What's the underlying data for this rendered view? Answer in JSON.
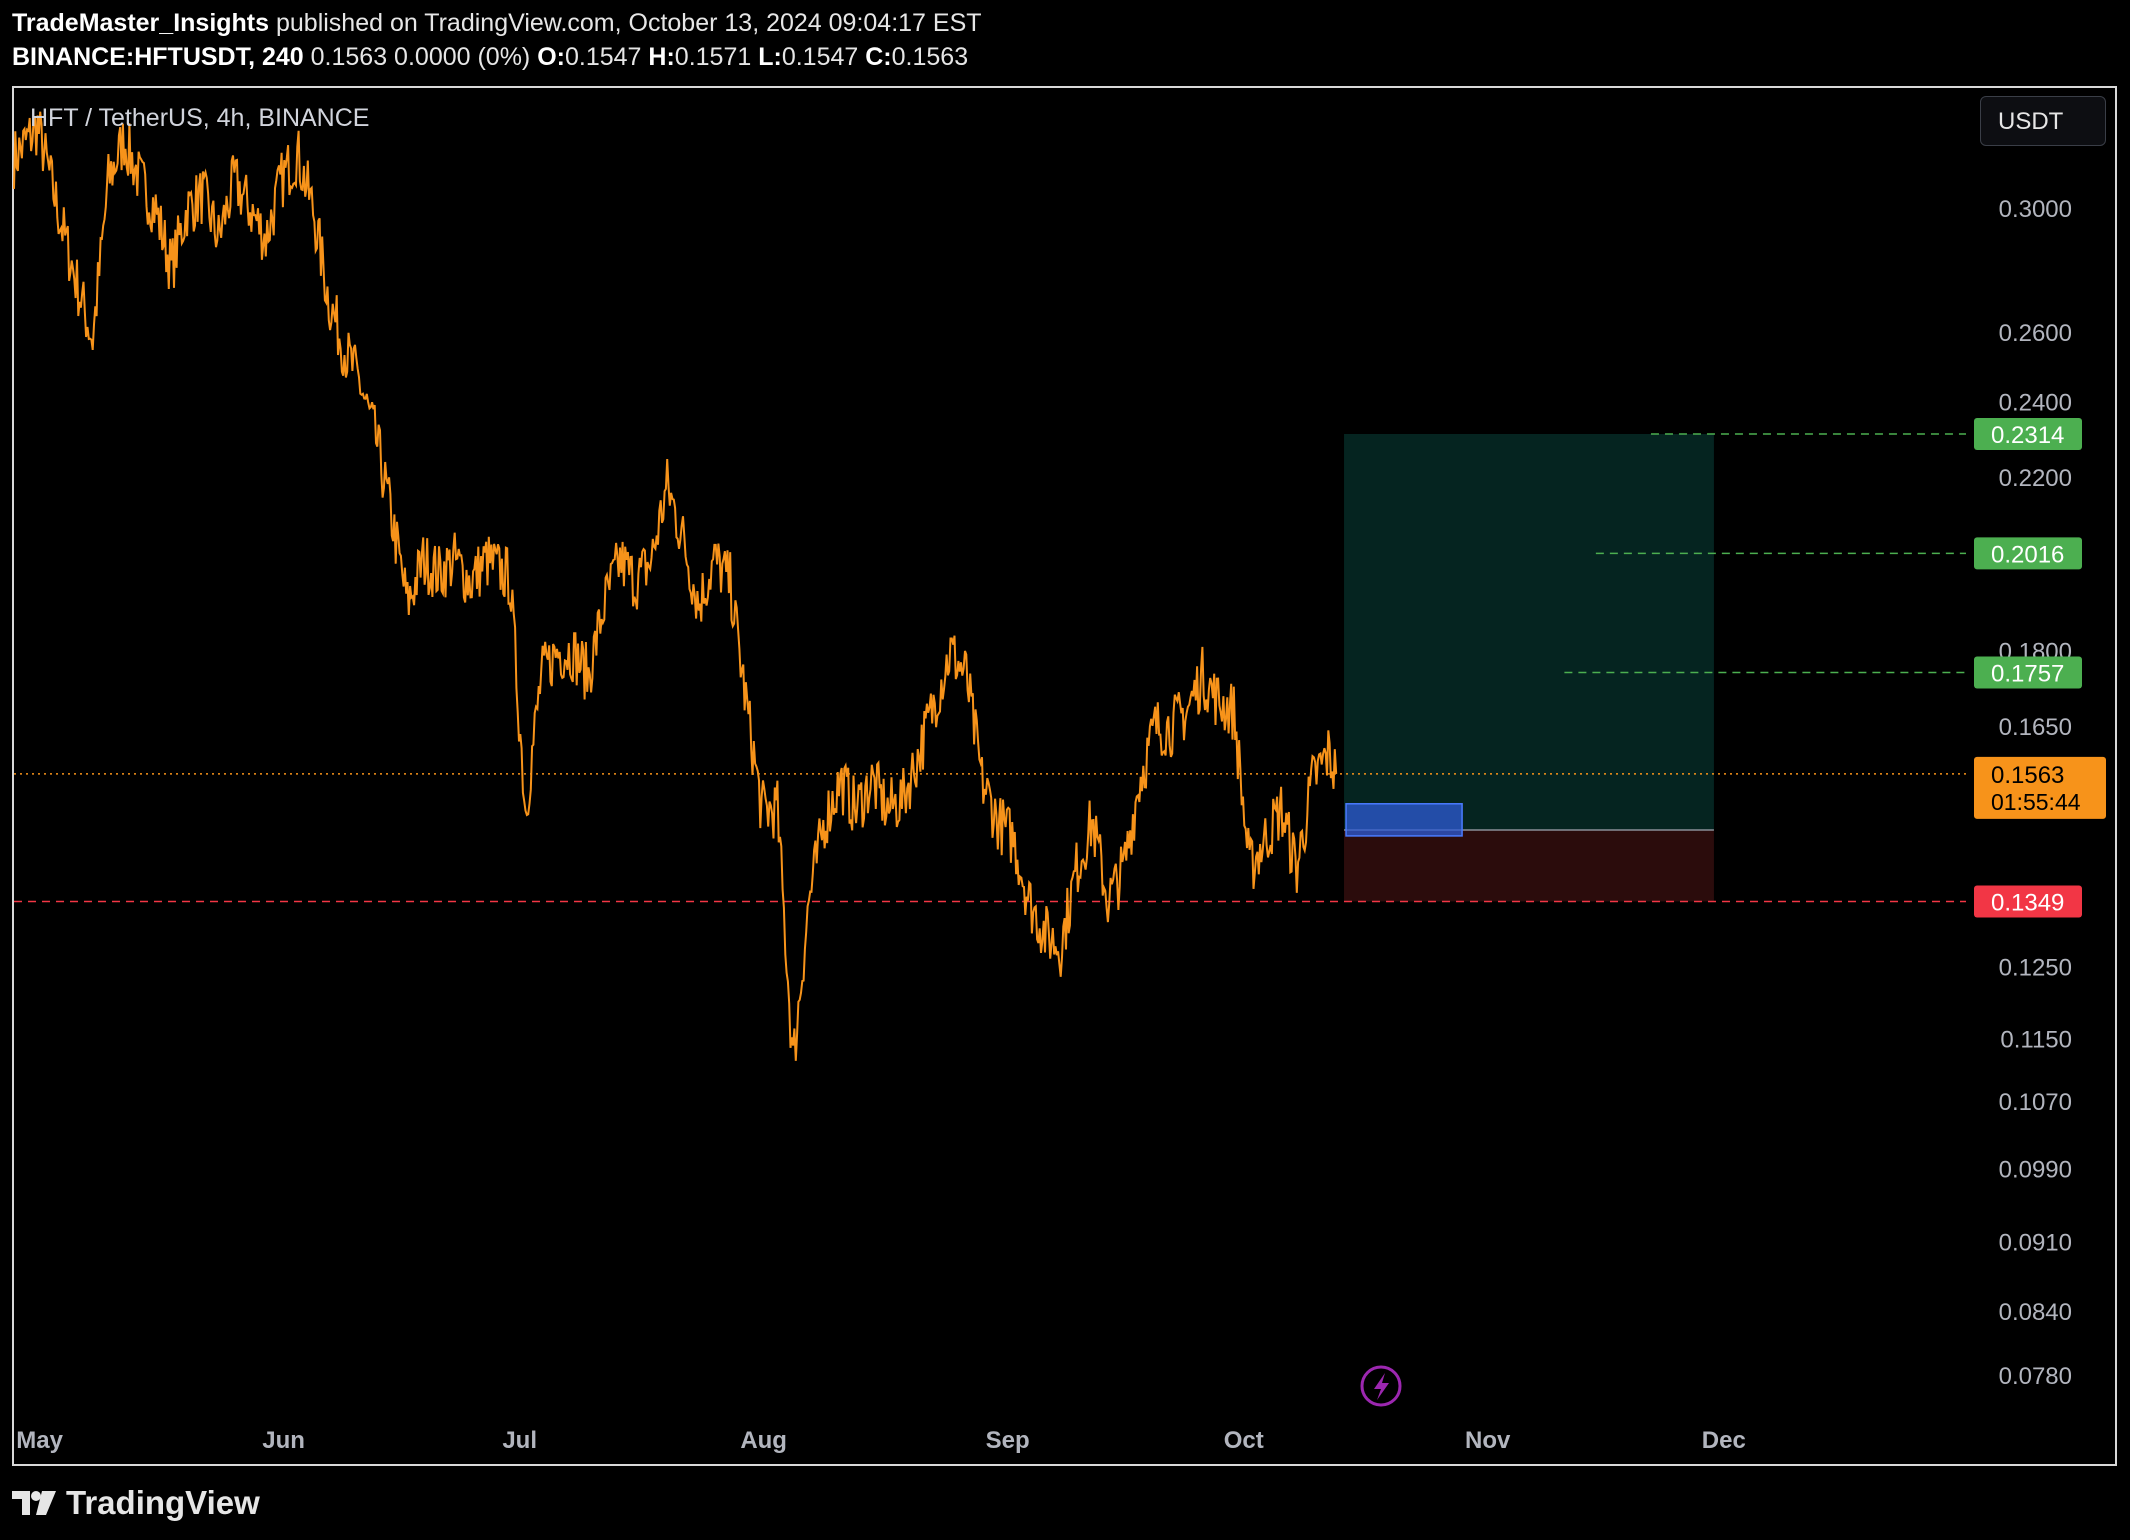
{
  "header": {
    "author": "TradeMaster_Insights",
    "published": " published on TradingView.com, October 13, 2024 09:04:17 EST",
    "symbol": "BINANCE:HFTUSDT, 240",
    "last": " 0.1563 0.0000 (0%) ",
    "o_label": "O:",
    "o_value": "0.1547",
    "h_label": "H:",
    "h_value": "0.1571",
    "l_label": "L:",
    "l_value": "0.1547",
    "c_label": "C:",
    "c_value": "0.1563"
  },
  "symbol_title": "HFT / TetherUS, 4h, BINANCE",
  "currency_button": "USDT",
  "footer": {
    "brand": "TradingView"
  },
  "colors": {
    "price_line": "#f7931a",
    "take_profit_zone": "#052420",
    "stop_zone": "#2b0c0c",
    "entry_box": "#2d5bd6",
    "target_label": "#4caf50",
    "stop_label": "#f23645",
    "last_price_label": "#f7931a",
    "axis_text": "#b2b5be"
  },
  "chart_data": {
    "type": "line",
    "scale": "log",
    "ylim": [
      0.075,
      0.345
    ],
    "x_axis_labels": [
      "May",
      "Jun",
      "Jul",
      "Aug",
      "Sep",
      "Oct",
      "Nov",
      "Dec"
    ],
    "y_axis_labels": [
      "0.3000",
      "0.2600",
      "0.2400",
      "0.2200",
      "0.1800",
      "0.1650",
      "0.1250",
      "0.1150",
      "0.1070",
      "0.0990",
      "0.0910",
      "0.0840",
      "0.0780"
    ],
    "series": [
      {
        "x": [
          "2024-04-28",
          "2024-05-01",
          "2024-05-04",
          "2024-05-06",
          "2024-05-08",
          "2024-05-10",
          "2024-05-12",
          "2024-05-14",
          "2024-05-16",
          "2024-05-18",
          "2024-05-20",
          "2024-05-22",
          "2024-05-24",
          "2024-05-26",
          "2024-05-28",
          "2024-05-30",
          "2024-06-01",
          "2024-06-03",
          "2024-06-05",
          "2024-06-07",
          "2024-06-09",
          "2024-06-11",
          "2024-06-13",
          "2024-06-15",
          "2024-06-17",
          "2024-06-19",
          "2024-06-21",
          "2024-06-23",
          "2024-06-25",
          "2024-06-27",
          "2024-06-30",
          "2024-07-02",
          "2024-07-04",
          "2024-07-06",
          "2024-07-08",
          "2024-07-10",
          "2024-07-12",
          "2024-07-14",
          "2024-07-16",
          "2024-07-18",
          "2024-07-20",
          "2024-07-22",
          "2024-07-24",
          "2024-07-26",
          "2024-07-28",
          "2024-07-30",
          "2024-08-01",
          "2024-08-03",
          "2024-08-05",
          "2024-08-07",
          "2024-08-09",
          "2024-08-11",
          "2024-08-13",
          "2024-08-15",
          "2024-08-17",
          "2024-08-19",
          "2024-08-21",
          "2024-08-23",
          "2024-08-25",
          "2024-08-27",
          "2024-08-29",
          "2024-08-31",
          "2024-09-02",
          "2024-09-04",
          "2024-09-06",
          "2024-09-08",
          "2024-09-10",
          "2024-09-12",
          "2024-09-14",
          "2024-09-16",
          "2024-09-18",
          "2024-09-20",
          "2024-09-22",
          "2024-09-24",
          "2024-09-26",
          "2024-09-28",
          "2024-09-30",
          "2024-10-02",
          "2024-10-04",
          "2024-10-06",
          "2024-10-08",
          "2024-10-10",
          "2024-10-12",
          "2024-10-13"
        ],
        "values": [
          0.318,
          0.33,
          0.295,
          0.275,
          0.258,
          0.31,
          0.325,
          0.31,
          0.3,
          0.28,
          0.3,
          0.305,
          0.29,
          0.31,
          0.3,
          0.29,
          0.31,
          0.32,
          0.3,
          0.27,
          0.255,
          0.245,
          0.23,
          0.21,
          0.19,
          0.2,
          0.197,
          0.2,
          0.195,
          0.2,
          0.196,
          0.15,
          0.175,
          0.18,
          0.18,
          0.175,
          0.19,
          0.2,
          0.195,
          0.2,
          0.218,
          0.205,
          0.19,
          0.2,
          0.195,
          0.17,
          0.15,
          0.15,
          0.112,
          0.135,
          0.148,
          0.155,
          0.15,
          0.155,
          0.15,
          0.152,
          0.16,
          0.17,
          0.18,
          0.175,
          0.155,
          0.148,
          0.145,
          0.135,
          0.13,
          0.128,
          0.14,
          0.148,
          0.135,
          0.14,
          0.155,
          0.165,
          0.165,
          0.168,
          0.175,
          0.17,
          0.168,
          0.14,
          0.145,
          0.15,
          0.14,
          0.155,
          0.16,
          0.1563
        ]
      }
    ],
    "last_price": {
      "value": 0.1563,
      "label": "0.1563",
      "countdown": "01:55:44"
    },
    "levels": [
      {
        "value": 0.2314,
        "label": "0.2314",
        "kind": "target"
      },
      {
        "value": 0.2016,
        "label": "0.2016",
        "kind": "target"
      },
      {
        "value": 0.1757,
        "label": "0.1757",
        "kind": "target"
      },
      {
        "value": 0.1349,
        "label": "0.1349",
        "kind": "stop"
      }
    ],
    "position": {
      "start": "2024-10-14",
      "end": "2024-11-30",
      "take_profit": 0.2314,
      "entry": 0.1465,
      "stop": 0.1349,
      "entry_box": {
        "start": "2024-10-14",
        "end": "2024-10-29",
        "high": 0.151,
        "low": 0.1455
      }
    }
  }
}
